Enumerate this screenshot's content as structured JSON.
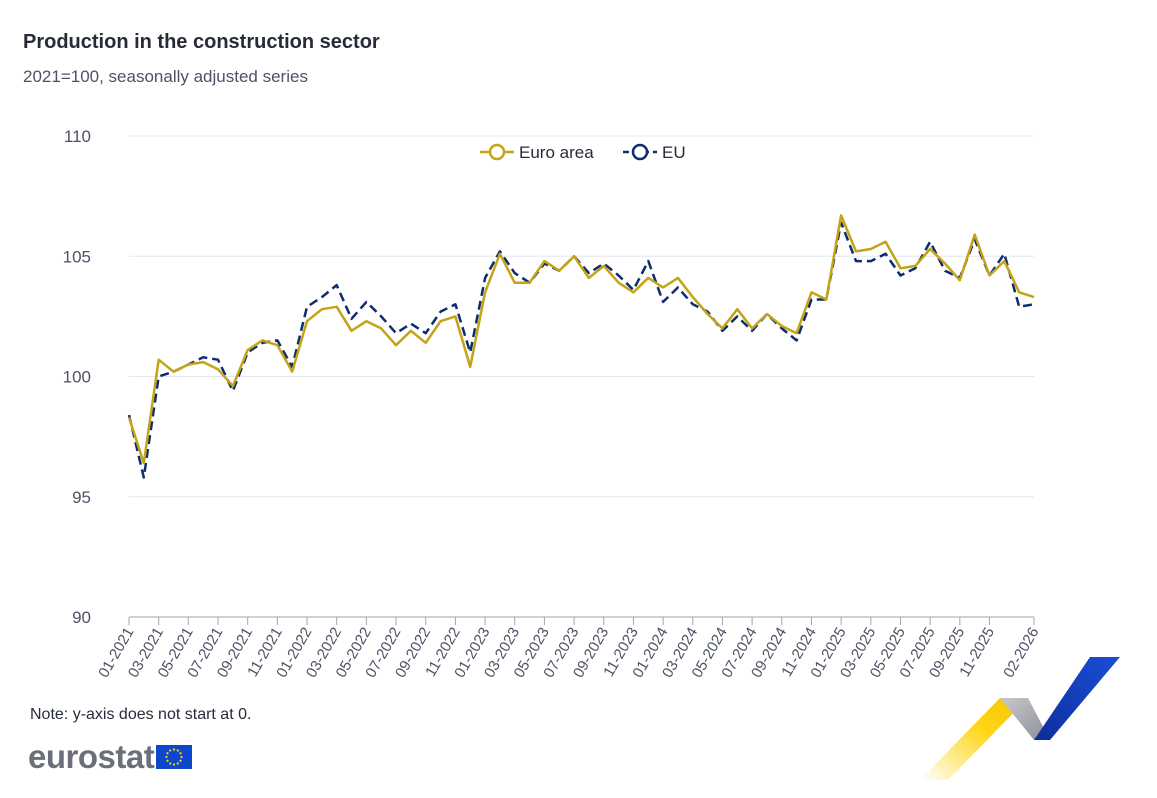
{
  "header": {
    "title": "Production in the construction sector",
    "subtitle": "2021=100, seasonally adjusted series"
  },
  "footer": {
    "note": "Note: y-axis does not start at 0.",
    "logo_text": "eurostat"
  },
  "icons": {
    "logo_flag": "eu-flag-icon",
    "decoration": "eurostat-ribbon-icon"
  },
  "colors": {
    "euro_area": "#c5a316",
    "eu": "#0e2d6e",
    "grid": "#e3e8f0",
    "axis": "#a0a6b3",
    "text": "#4d5366"
  },
  "chart_data": {
    "type": "line",
    "ylim": [
      90,
      110
    ],
    "yticks": [
      90,
      95,
      100,
      105,
      110
    ],
    "legend_position": "top-center",
    "grid": true,
    "x": [
      "01-2021",
      "02-2021",
      "03-2021",
      "04-2021",
      "05-2021",
      "06-2021",
      "07-2021",
      "08-2021",
      "09-2021",
      "10-2021",
      "11-2021",
      "12-2021",
      "01-2022",
      "02-2022",
      "03-2022",
      "04-2022",
      "05-2022",
      "06-2022",
      "07-2022",
      "08-2022",
      "09-2022",
      "10-2022",
      "11-2022",
      "12-2022",
      "01-2023",
      "02-2023",
      "03-2023",
      "04-2023",
      "05-2023",
      "06-2023",
      "07-2023",
      "08-2023",
      "09-2023",
      "10-2023",
      "11-2023",
      "12-2023",
      "01-2024",
      "02-2024",
      "03-2024",
      "04-2024",
      "05-2024",
      "06-2024",
      "07-2024",
      "08-2024",
      "09-2024",
      "10-2024",
      "11-2024",
      "12-2024",
      "01-2025",
      "02-2025",
      "03-2025",
      "04-2025",
      "05-2025",
      "06-2025",
      "07-2025",
      "08-2025",
      "09-2025",
      "10-2025",
      "11-2025",
      "12-2025",
      "01-2026",
      "02-2026"
    ],
    "xtick_labels": [
      "01-2021",
      "03-2021",
      "05-2021",
      "07-2021",
      "09-2021",
      "11-2021",
      "01-2022",
      "03-2022",
      "05-2022",
      "07-2022",
      "09-2022",
      "11-2022",
      "01-2023",
      "03-2023",
      "05-2023",
      "07-2023",
      "09-2023",
      "11-2023",
      "01-2024",
      "03-2024",
      "05-2024",
      "07-2024",
      "09-2024",
      "11-2024",
      "01-2025",
      "03-2025",
      "05-2025",
      "07-2025",
      "09-2025",
      "11-2025",
      "02-2026"
    ],
    "series": [
      {
        "name": "Euro area",
        "style": "solid",
        "values": [
          98.3,
          96.4,
          100.7,
          100.2,
          100.5,
          100.6,
          100.3,
          99.6,
          101.1,
          101.5,
          101.3,
          100.2,
          102.3,
          102.8,
          102.9,
          101.9,
          102.3,
          102.0,
          101.3,
          101.9,
          101.4,
          102.3,
          102.5,
          100.4,
          103.5,
          105.1,
          103.9,
          103.9,
          104.8,
          104.4,
          105.0,
          104.1,
          104.6,
          103.9,
          103.5,
          104.1,
          103.7,
          104.1,
          103.3,
          102.6,
          102.0,
          102.8,
          102.0,
          102.6,
          102.1,
          101.8,
          103.5,
          103.2,
          106.7,
          105.2,
          105.3,
          105.6,
          104.5,
          104.6,
          105.3,
          104.7,
          104.0,
          105.9,
          104.2,
          104.8,
          103.5,
          103.3
        ]
      },
      {
        "name": "EU",
        "style": "dashed",
        "values": [
          98.4,
          95.8,
          100.0,
          100.2,
          100.5,
          100.8,
          100.7,
          99.4,
          101.0,
          101.4,
          101.5,
          100.4,
          102.9,
          103.3,
          103.8,
          102.4,
          103.1,
          102.5,
          101.8,
          102.2,
          101.8,
          102.7,
          103.0,
          101.0,
          104.1,
          105.2,
          104.3,
          103.9,
          104.7,
          104.4,
          105.0,
          104.3,
          104.7,
          104.2,
          103.6,
          104.8,
          103.1,
          103.7,
          103.0,
          102.7,
          101.9,
          102.5,
          101.9,
          102.6,
          102.0,
          101.5,
          103.2,
          103.2,
          106.4,
          104.8,
          104.8,
          105.1,
          104.2,
          104.5,
          105.6,
          104.4,
          104.1,
          105.7,
          104.2,
          105.1,
          102.9,
          103.0
        ]
      }
    ]
  }
}
